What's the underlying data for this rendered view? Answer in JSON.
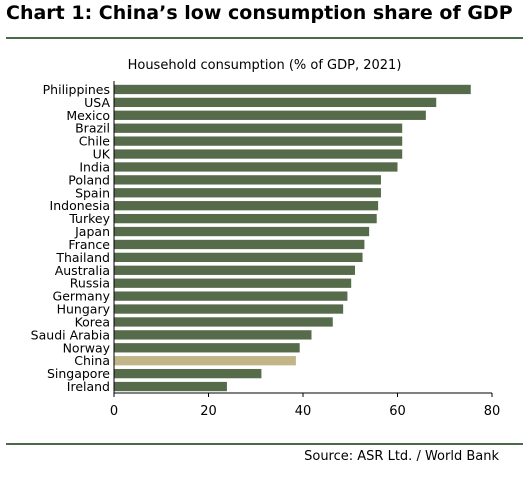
{
  "title": "Chart 1: China’s low consumption share of GDP",
  "source": "Source: ASR Ltd. / World Bank",
  "colors": {
    "bar": "#556b4a",
    "highlight": "#c2b588",
    "rule": "#4a6a4a"
  },
  "chart_data": {
    "type": "bar",
    "orientation": "horizontal",
    "title": "Household consumption (% of GDP, 2021)",
    "xlabel": "",
    "ylabel": "",
    "xlim": [
      0,
      80
    ],
    "ticks": [
      0,
      20,
      40,
      60,
      80
    ],
    "grid": false,
    "highlight": "China",
    "categories": [
      "Philippines",
      "USA",
      "Mexico",
      "Brazil",
      "Chile",
      "UK",
      "India",
      "Poland",
      "Spain",
      "Indonesia",
      "Turkey",
      "Japan",
      "France",
      "Thailand",
      "Australia",
      "Russia",
      "Germany",
      "Hungary",
      "Korea",
      "Saudi Arabia",
      "Norway",
      "China",
      "Singapore",
      "Ireland"
    ],
    "values": [
      75.5,
      68.2,
      66,
      61,
      61,
      61,
      60,
      56.5,
      56.5,
      55.9,
      55.6,
      54,
      53,
      52.6,
      51,
      50.2,
      49.4,
      48.5,
      46.3,
      41.8,
      39.3,
      38.5,
      31.2,
      23.9
    ]
  }
}
